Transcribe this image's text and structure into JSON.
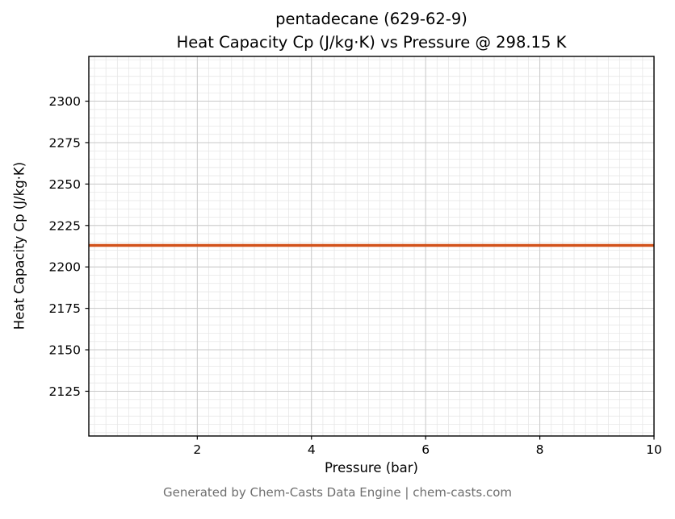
{
  "chart_data": {
    "type": "line",
    "title_line1": "pentadecane (629-62-9)",
    "title_line2": "Heat Capacity Cp (J/kg·K) vs Pressure @ 298.15 K",
    "xlabel": "Pressure (bar)",
    "ylabel": "Heat Capacity Cp (J/kg·K)",
    "xlim": [
      0.1,
      10.0
    ],
    "ylim": [
      2098,
      2327
    ],
    "x_ticks": [
      2,
      4,
      6,
      8,
      10
    ],
    "y_ticks": [
      2125,
      2150,
      2175,
      2200,
      2225,
      2250,
      2275,
      2300
    ],
    "x_minor_step": 0.2,
    "y_minor_step": 5,
    "grid": {
      "major_color": "#c9c9c9",
      "minor_color": "#e7e7e7"
    },
    "frame_color": "#000000",
    "line_width": 3.5,
    "series": [
      {
        "name": "Heat Capacity Cp",
        "color": "#d2521b",
        "constant_value": 2213,
        "x": [
          0.1,
          10.0
        ],
        "y": [
          2213,
          2213
        ]
      }
    ]
  },
  "footer": {
    "text": "Generated by Chem-Casts Data Engine | chem-casts.com"
  }
}
